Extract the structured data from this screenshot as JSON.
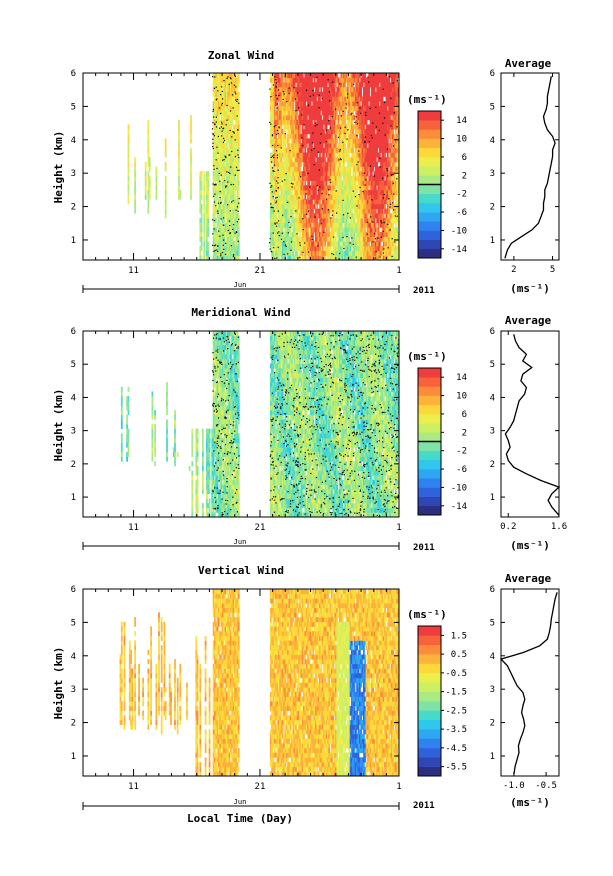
{
  "figure": {
    "xlabel": "Local Time (Day)"
  },
  "chart_data": [
    {
      "type": "heatmap",
      "title": "Zonal Wind",
      "ylabel": "Height (km)",
      "yticks": [
        "1",
        "2",
        "3",
        "4",
        "5",
        "6"
      ],
      "ylim": [
        0.4,
        6
      ],
      "xticks": [
        "11",
        "21",
        "1"
      ],
      "month_label": "Jun",
      "year_label": "2011",
      "colorbar": {
        "unit": "(ms⁻¹)",
        "ticks": [
          "14",
          "10",
          "6",
          "2",
          "-2",
          "-6",
          "-10",
          "-14"
        ],
        "range": [
          -16,
          16
        ],
        "colors": [
          "#2b2f7f",
          "#2e47b5",
          "#2e63db",
          "#2f82ef",
          "#2ea7f2",
          "#2fc7ec",
          "#47dacb",
          "#7fe3a6",
          "#a9ea83",
          "#cdef63",
          "#ecee4d",
          "#fdd83b",
          "#fdb23a",
          "#fc8c39",
          "#f7623a",
          "#ef3c3c"
        ]
      },
      "average_profile": {
        "title": "Average",
        "xlabel": "(ms⁻¹)",
        "xticks": [
          "2",
          "5"
        ],
        "xlim": [
          1,
          5.5
        ],
        "height": [
          0.45,
          0.7,
          0.9,
          1.1,
          1.3,
          1.5,
          1.7,
          1.9,
          2.1,
          2.3,
          2.5,
          2.7,
          2.9,
          3.1,
          3.3,
          3.5,
          3.7,
          3.9,
          4.1,
          4.3,
          4.5,
          4.7,
          4.9,
          5.1,
          5.3,
          5.5,
          5.7,
          5.9
        ],
        "value": [
          1.3,
          1.5,
          1.8,
          2.6,
          3.4,
          3.9,
          4.1,
          4.3,
          4.3,
          4.4,
          4.4,
          4.6,
          4.7,
          4.8,
          4.9,
          5.0,
          5.0,
          5.2,
          5.0,
          4.6,
          4.4,
          4.3,
          4.5,
          4.6,
          4.6,
          4.7,
          4.8,
          4.9
        ]
      }
    },
    {
      "type": "heatmap",
      "title": "Meridional Wind",
      "ylabel": "Height (km)",
      "yticks": [
        "1",
        "2",
        "3",
        "4",
        "5",
        "6"
      ],
      "ylim": [
        0.4,
        6
      ],
      "xticks": [
        "11",
        "21",
        "1"
      ],
      "month_label": "Jun",
      "year_label": "2011",
      "colorbar": {
        "unit": "(ms⁻¹)",
        "ticks": [
          "14",
          "10",
          "6",
          "2",
          "-2",
          "-6",
          "-10",
          "-14"
        ],
        "range": [
          -16,
          16
        ],
        "colors": [
          "#2b2f7f",
          "#2e47b5",
          "#2e63db",
          "#2f82ef",
          "#2ea7f2",
          "#2fc7ec",
          "#47dacb",
          "#7fe3a6",
          "#a9ea83",
          "#cdef63",
          "#ecee4d",
          "#fdd83b",
          "#fdb23a",
          "#fc8c39",
          "#f7623a",
          "#ef3c3c"
        ]
      },
      "average_profile": {
        "title": "Average",
        "xlabel": "(ms⁻¹)",
        "xticks": [
          "0.2",
          "1.6"
        ],
        "xlim": [
          0,
          1.6
        ],
        "height": [
          0.45,
          0.7,
          0.9,
          1.1,
          1.3,
          1.5,
          1.7,
          1.9,
          2.1,
          2.3,
          2.5,
          2.7,
          2.9,
          3.1,
          3.3,
          3.5,
          3.7,
          3.9,
          4.1,
          4.3,
          4.5,
          4.7,
          4.9,
          5.1,
          5.3,
          5.5,
          5.7,
          5.9
        ],
        "value": [
          1.6,
          1.4,
          1.3,
          1.4,
          1.6,
          1.1,
          0.7,
          0.35,
          0.2,
          0.15,
          0.25,
          0.2,
          0.12,
          0.25,
          0.35,
          0.4,
          0.45,
          0.5,
          0.65,
          0.7,
          0.55,
          0.6,
          0.85,
          0.6,
          0.7,
          0.5,
          0.4,
          0.35
        ]
      }
    },
    {
      "type": "heatmap",
      "title": "Vertical Wind",
      "ylabel": "Height (km)",
      "yticks": [
        "1",
        "2",
        "3",
        "4",
        "5",
        "6"
      ],
      "ylim": [
        0.4,
        6
      ],
      "xticks": [
        "11",
        "21",
        "1"
      ],
      "month_label": "Jun",
      "year_label": "2011",
      "colorbar": {
        "unit": "(ms⁻¹)",
        "ticks": [
          "1.5",
          "0.5",
          "-0.5",
          "-1.5",
          "-2.5",
          "-3.5",
          "-4.5",
          "-5.5"
        ],
        "range": [
          -6,
          2
        ],
        "colors": [
          "#2b2f7f",
          "#2e47b5",
          "#2e63db",
          "#2f82ef",
          "#2ea7f2",
          "#2fc7ec",
          "#47dacb",
          "#7fe3a6",
          "#a9ea83",
          "#cdef63",
          "#ecee4d",
          "#fdd83b",
          "#fdb23a",
          "#fc8c39",
          "#f7623a",
          "#ef3c3c"
        ]
      },
      "average_profile": {
        "title": "Average",
        "xlabel": "(ms⁻¹)",
        "xticks": [
          "-1.0",
          "-0.5"
        ],
        "xlim": [
          -1.2,
          -0.3
        ],
        "height": [
          0.45,
          0.7,
          0.9,
          1.1,
          1.3,
          1.5,
          1.7,
          1.9,
          2.1,
          2.3,
          2.5,
          2.7,
          2.9,
          3.1,
          3.3,
          3.5,
          3.7,
          3.9,
          4.1,
          4.3,
          4.5,
          4.7,
          4.9,
          5.1,
          5.3,
          5.5,
          5.7,
          5.9
        ],
        "value": [
          -1.0,
          -0.98,
          -0.95,
          -0.92,
          -0.93,
          -0.9,
          -0.86,
          -0.83,
          -0.85,
          -0.88,
          -0.86,
          -0.83,
          -0.86,
          -0.95,
          -1.0,
          -1.05,
          -1.1,
          -1.2,
          -0.85,
          -0.6,
          -0.48,
          -0.45,
          -0.43,
          -0.42,
          -0.4,
          -0.38,
          -0.36,
          -0.33
        ]
      }
    }
  ]
}
